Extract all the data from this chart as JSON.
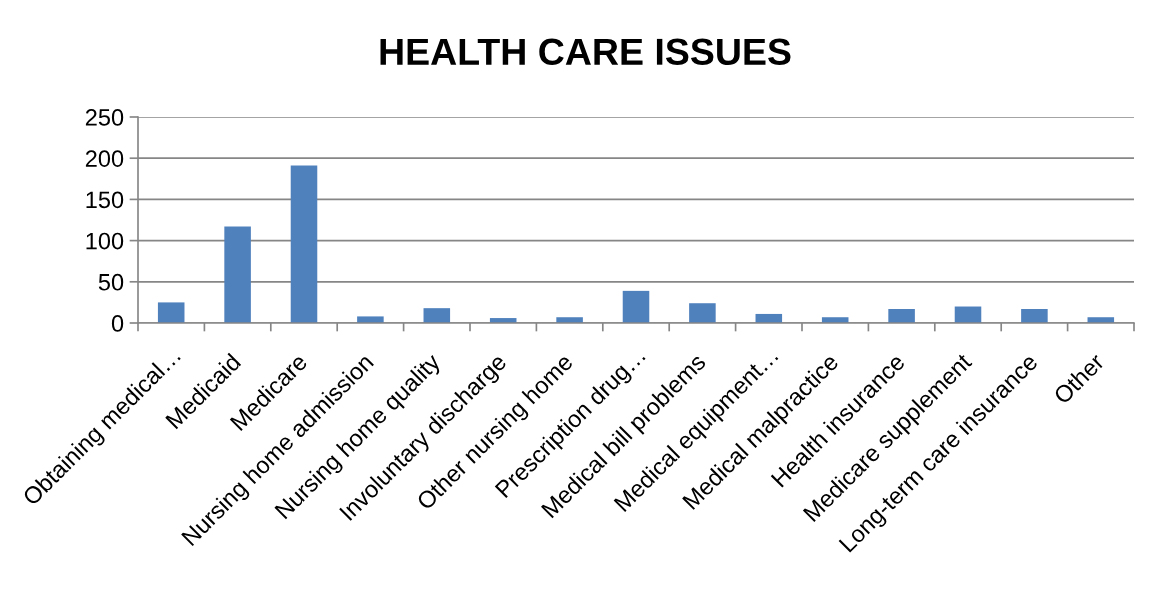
{
  "chart_data": {
    "type": "bar",
    "title": "HEALTH CARE ISSUES",
    "categories": [
      "Obtaining medical…",
      "Medicaid",
      "Medicare",
      "Nursing home admission",
      "Nursing home quality",
      "Involuntary discharge",
      "Other nursing home",
      "Prescription drug…",
      "Medical bill problems",
      "Medical equipment…",
      "Medical malpractice",
      "Health insurance",
      "Medicare supplement",
      "Long-term care insurance",
      "Other"
    ],
    "values": [
      25,
      117,
      191,
      8,
      18,
      6,
      7,
      39,
      24,
      11,
      7,
      17,
      20,
      17,
      7
    ],
    "color": "#4f81bd",
    "ylim": [
      0,
      250
    ],
    "yticks": [
      0,
      50,
      100,
      150,
      200,
      250
    ],
    "grid": "y"
  }
}
